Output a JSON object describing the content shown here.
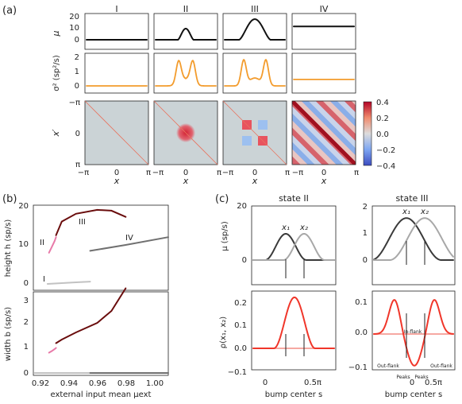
{
  "panel_letters": {
    "a": "(a)",
    "b": "(b)",
    "c": "(c)"
  },
  "colors": {
    "black": "#111111",
    "orange": "#f39c2d",
    "corr_bg": "#cbd3d6",
    "diag": "#e8735f",
    "lightgray": "#c2c2c2",
    "pink": "#e87aa8",
    "darkred": "#6a0d0d",
    "gray": "#707070",
    "darkgray": "#3a3a3a",
    "midgray": "#a8a8a8",
    "red": "#f0362a",
    "lightred": "#f6a9a2"
  },
  "panel_a": {
    "column_titles": [
      "I",
      "II",
      "III",
      "IV"
    ],
    "mu_label": "μ",
    "mu_ticks": [
      "20",
      "10",
      "0"
    ],
    "sigma_label": "σ² (sp²/s)",
    "sigma_ticks": [
      "2",
      "1",
      "0"
    ],
    "xprime_label": "x′",
    "xprime_ticks": [
      "−π",
      "0",
      "π"
    ],
    "x_ticks": [
      "−π",
      "0",
      "π"
    ],
    "x_label": "x",
    "colorbar_ticks": [
      "0.4",
      "0.2",
      "0.0",
      "−0.2",
      "−0.4"
    ],
    "mu_profiles": [
      {
        "state": "I",
        "peak": 0,
        "width": 0,
        "base": 0
      },
      {
        "state": "II",
        "peak": 10,
        "width": 0.55,
        "base": 0
      },
      {
        "state": "III",
        "peak": 18.5,
        "width": 1.1,
        "base": 0
      },
      {
        "state": "IV",
        "peak": 12,
        "width": 0,
        "base": 12
      }
    ],
    "sigma_profiles": [
      {
        "state": "I",
        "type": "flat",
        "level": 0
      },
      {
        "state": "II",
        "type": "bimodal",
        "peak": 1.55
      },
      {
        "state": "III",
        "type": "bimodal",
        "peak": 1.75
      },
      {
        "state": "IV",
        "type": "flat",
        "level": 0.45
      }
    ]
  },
  "panel_b": {
    "top": {
      "ylabel": "height h (sp/s)",
      "yticks": [
        "20",
        "10",
        "0"
      ],
      "ylim": [
        -2,
        20
      ],
      "labels": [
        "I",
        "II",
        "III",
        "IV"
      ]
    },
    "bottom": {
      "ylabel": "width b (sp/s)",
      "yticks": [
        "3",
        "2",
        "1",
        "0"
      ],
      "ylim": [
        -0.2,
        3.7
      ]
    },
    "xlabel": "external input mean μext",
    "xticks": [
      "0.92",
      "0.94",
      "0.96",
      "0.98",
      "1.00"
    ],
    "xlim": [
      0.915,
      1.01
    ],
    "chart_data": {
      "type": "line",
      "series": [
        {
          "name": "I",
          "x": [
            0.925,
            0.935,
            0.945,
            0.955
          ],
          "height": [
            0,
            0.2,
            0.4,
            0.6
          ],
          "width": [
            0,
            0,
            0,
            0
          ]
        },
        {
          "name": "II",
          "x": [
            0.926,
            0.928,
            0.93,
            0.931
          ],
          "height": [
            8,
            9.5,
            11,
            12
          ],
          "width": [
            0.85,
            0.92,
            1.0,
            1.05
          ]
        },
        {
          "name": "III",
          "x": [
            0.931,
            0.935,
            0.945,
            0.96,
            0.97,
            0.98
          ],
          "height": [
            12.5,
            16,
            18,
            19,
            18.8,
            17.2
          ],
          "width": [
            1.25,
            1.4,
            1.7,
            2.1,
            2.6,
            3.55
          ]
        },
        {
          "name": "IV",
          "x": [
            0.955,
            0.98,
            1.01
          ],
          "height": [
            8.5,
            10,
            12
          ],
          "width": [
            0,
            0,
            0
          ]
        }
      ]
    }
  },
  "panel_c": {
    "state_ii_title": "state II",
    "state_iii_title": "state III",
    "mu_label": "μ (sp/s)",
    "rho_label": "ρ(x₁, x₂)",
    "x1": "x₁",
    "x2": "x₂",
    "left_mu_ticks": [
      "20",
      "0"
    ],
    "right_mu_ticks": [
      "2",
      "1",
      "0"
    ],
    "left_rho_ticks": [
      "0.2",
      "0.1",
      "0.0",
      "−0.1"
    ],
    "right_rho_ticks": [
      "0.1",
      "0.0",
      "−0.1"
    ],
    "x_ticks": [
      "0",
      "0.5π"
    ],
    "xlabel": "bump center s",
    "in_flank": "In-flank",
    "out_flank_left": "Out-flank",
    "out_flank_right": "Out-flank",
    "peaks_left": "Peaks",
    "peaks_right": "Peaks"
  }
}
